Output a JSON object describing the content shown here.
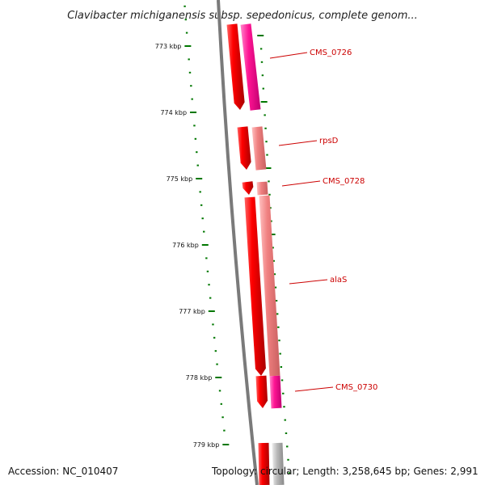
{
  "title": "Clavibacter michiganensis subsp. sepedonicus, complete genom...",
  "footer": {
    "accession": "Accession: NC_010407",
    "summary": "Topology: circular; Length: 3,258,645 bp; Genes: 2,991"
  },
  "ruler": {
    "unit": "kbp",
    "labels": [
      "773 kbp",
      "774 kbp",
      "775 kbp",
      "776 kbp",
      "777 kbp",
      "778 kbp",
      "779 kbp"
    ]
  },
  "genes": [
    {
      "name": "CMS_0726"
    },
    {
      "name": "rpsD"
    },
    {
      "name": "CMS_0728"
    },
    {
      "name": "alaS"
    },
    {
      "name": "CMS_0730"
    }
  ],
  "colors": {
    "cds_forward": "#ee0000",
    "pink_strong": "#ff1493",
    "pink_light": "#f08080",
    "grey_feature": "#bbbbbb",
    "backbone": "#777777",
    "ruler_ticks": "#007700",
    "label_red": "#cc0000"
  }
}
